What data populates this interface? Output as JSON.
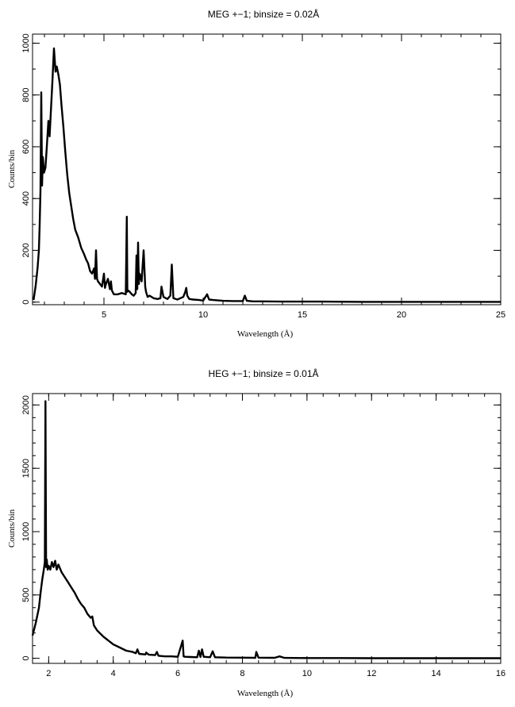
{
  "chart_data": [
    {
      "type": "line",
      "title": "MEG +−1; binsize = 0.02Å",
      "xlabel": "Wavelength (Å)",
      "ylabel": "Counts/bin",
      "xlim": [
        1.4,
        25
      ],
      "ylim": [
        -10,
        1035
      ],
      "xticks": [
        5,
        10,
        15,
        20,
        25
      ],
      "xtick_labels": [
        "5",
        "10",
        "15",
        "20",
        "25"
      ],
      "xminor_step": 1,
      "yticks": [
        0,
        200,
        400,
        600,
        800,
        1000
      ],
      "ytick_labels": [
        "0",
        "200",
        "400",
        "600",
        "800",
        "1000"
      ],
      "yminor_step": 100,
      "grid": false,
      "series": [
        {
          "color": "#000000",
          "x": [
            1.45,
            1.55,
            1.65,
            1.72,
            1.76,
            1.8,
            1.84,
            1.88,
            1.92,
            1.98,
            2.05,
            2.12,
            2.2,
            2.26,
            2.32,
            2.4,
            2.48,
            2.56,
            2.62,
            2.7,
            2.78,
            2.86,
            2.95,
            3.05,
            3.15,
            3.25,
            3.35,
            3.45,
            3.55,
            3.7,
            3.85,
            4.0,
            4.1,
            4.2,
            4.3,
            4.4,
            4.5,
            4.55,
            4.6,
            4.65,
            4.7,
            4.8,
            4.9,
            5.0,
            5.05,
            5.1,
            5.2,
            5.3,
            5.35,
            5.4,
            5.5,
            5.7,
            5.9,
            6.1,
            6.15,
            6.18,
            6.22,
            6.3,
            6.4,
            6.5,
            6.6,
            6.64,
            6.68,
            6.72,
            6.76,
            6.8,
            6.9,
            7.0,
            7.08,
            7.12,
            7.2,
            7.3,
            7.5,
            7.7,
            7.85,
            7.9,
            8.0,
            8.2,
            8.35,
            8.42,
            8.5,
            8.7,
            9.0,
            9.1,
            9.15,
            9.2,
            9.3,
            9.5,
            9.8,
            10.0,
            10.2,
            10.3,
            10.5,
            11.0,
            11.5,
            12.0,
            12.1,
            12.2,
            12.5,
            13,
            14,
            15,
            16,
            18,
            20,
            22,
            25
          ],
          "y": [
            8,
            60,
            130,
            200,
            300,
            430,
            810,
            450,
            560,
            500,
            520,
            600,
            700,
            640,
            730,
            850,
            980,
            890,
            910,
            880,
            840,
            760,
            680,
            580,
            490,
            420,
            370,
            320,
            280,
            250,
            210,
            185,
            165,
            150,
            120,
            110,
            130,
            90,
            200,
            90,
            80,
            70,
            60,
            110,
            55,
            70,
            90,
            50,
            80,
            45,
            30,
            30,
            35,
            30,
            330,
            40,
            45,
            40,
            30,
            25,
            35,
            180,
            50,
            230,
            70,
            110,
            80,
            200,
            60,
            40,
            20,
            25,
            15,
            12,
            15,
            60,
            20,
            12,
            25,
            145,
            15,
            10,
            20,
            40,
            55,
            25,
            12,
            10,
            8,
            6,
            30,
            10,
            8,
            5,
            4,
            4,
            25,
            5,
            3,
            3,
            2,
            2,
            2,
            1,
            1,
            1,
            1
          ]
        }
      ]
    },
    {
      "type": "line",
      "title": "HEG +−1; binsize = 0.01Å",
      "xlabel": "Wavelength (Å)",
      "ylabel": "Counts/bin",
      "xlim": [
        1.5,
        16
      ],
      "ylim": [
        -40,
        2090
      ],
      "xticks": [
        2,
        4,
        6,
        8,
        10,
        12,
        14,
        16
      ],
      "xtick_labels": [
        "2",
        "4",
        "6",
        "8",
        "10",
        "12",
        "14",
        "16"
      ],
      "xminor_step": 0.5,
      "yticks": [
        0,
        500,
        1000,
        1500,
        2000
      ],
      "ytick_labels": [
        "0",
        "500",
        "1000",
        "1500",
        "2000"
      ],
      "yminor_step": 100,
      "grid": false,
      "series": [
        {
          "color": "#000000",
          "x": [
            1.5,
            1.6,
            1.7,
            1.75,
            1.8,
            1.85,
            1.88,
            1.9,
            1.92,
            1.94,
            1.97,
            2.0,
            2.05,
            2.1,
            2.15,
            2.2,
            2.25,
            2.3,
            2.4,
            2.5,
            2.6,
            2.7,
            2.8,
            2.9,
            3.0,
            3.1,
            3.2,
            3.3,
            3.35,
            3.4,
            3.5,
            3.7,
            3.9,
            4.0,
            4.2,
            4.4,
            4.6,
            4.7,
            4.75,
            4.8,
            5.0,
            5.02,
            5.1,
            5.3,
            5.35,
            5.4,
            5.6,
            5.8,
            6.0,
            6.15,
            6.18,
            6.22,
            6.4,
            6.6,
            6.65,
            6.7,
            6.75,
            6.8,
            7.0,
            7.08,
            7.15,
            7.5,
            8.0,
            8.4,
            8.43,
            8.5,
            9.0,
            9.15,
            9.3,
            10.0,
            11.0,
            12.0,
            14.0,
            16.0
          ],
          "y": [
            180,
            280,
            400,
            520,
            620,
            700,
            760,
            2030,
            720,
            780,
            700,
            730,
            700,
            760,
            720,
            770,
            700,
            740,
            680,
            640,
            600,
            560,
            520,
            470,
            430,
            400,
            350,
            320,
            330,
            260,
            220,
            170,
            130,
            110,
            85,
            60,
            50,
            40,
            70,
            35,
            30,
            45,
            28,
            25,
            50,
            20,
            15,
            15,
            12,
            140,
            15,
            12,
            10,
            8,
            60,
            10,
            70,
            12,
            8,
            55,
            8,
            6,
            5,
            4,
            50,
            5,
            4,
            15,
            3,
            2,
            2,
            1,
            1,
            1
          ]
        }
      ]
    }
  ]
}
